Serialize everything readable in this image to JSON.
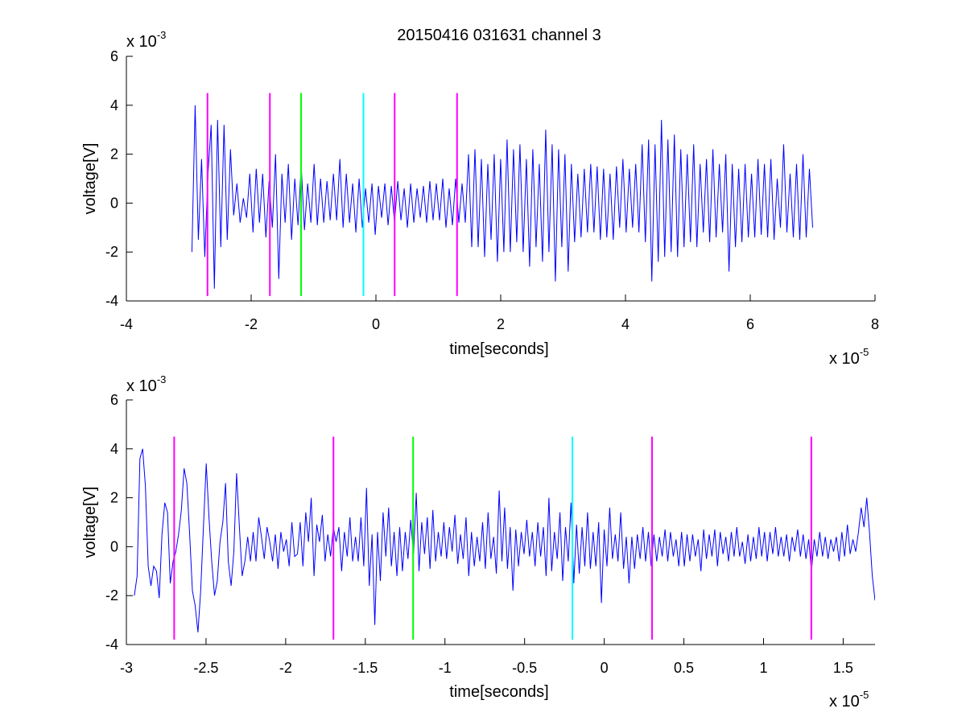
{
  "figure_title": "20150416 031631 channel 3",
  "chart_data": [
    {
      "type": "line",
      "xlabel": "time[seconds]",
      "ylabel": "voltage[V]",
      "x_multiplier": "x 10",
      "x_exponent": "-5",
      "y_multiplier": "x 10",
      "y_exponent": "-3",
      "xlim": [
        -4,
        8
      ],
      "ylim": [
        -4,
        6
      ],
      "x_ticks": [
        -4,
        -2,
        0,
        2,
        4,
        6,
        8
      ],
      "x_tick_labels": [
        "-4",
        "-2",
        "0",
        "2",
        "4",
        "6",
        "8"
      ],
      "y_ticks": [
        -4,
        -2,
        0,
        2,
        4,
        6
      ],
      "y_tick_labels": [
        "-4",
        "-2",
        "0",
        "2",
        "4",
        "6"
      ],
      "grid": false,
      "series": [
        {
          "color": "#0000ff",
          "x_start": -2.95,
          "x_end": 7.0,
          "values": [
            -2.0,
            4.0,
            -1.5,
            1.8,
            -2.2,
            1.2,
            3.2,
            -3.5,
            3.4,
            -1.8,
            3.2,
            -1.5,
            2.2,
            -0.5,
            0.8,
            -0.8,
            0.2,
            -0.6,
            1.2,
            -1.2,
            1.4,
            -0.8,
            1.2,
            -1.4,
            0.9,
            -1.0,
            2.0,
            -3.1,
            1.2,
            -0.8,
            1.6,
            -1.5,
            1.0,
            -0.9,
            1.5,
            -1.1,
            0.8,
            -0.8,
            1.6,
            -0.9,
            1.0,
            -0.8,
            0.9,
            -0.7,
            1.2,
            -0.7,
            1.8,
            -1.0,
            1.2,
            -0.8,
            0.8,
            -1.2,
            1.0,
            -1.0,
            0.6,
            -0.8,
            0.8,
            -1.3,
            0.7,
            -0.6,
            0.8,
            -0.9,
            0.7,
            -0.8,
            0.9,
            -0.7,
            0.6,
            -1.0,
            0.8,
            -0.8,
            0.6,
            -0.6,
            0.7,
            -0.8,
            0.9,
            -0.7,
            0.8,
            -0.7,
            1.0,
            -1.0,
            0.6,
            -0.9,
            1.0,
            -0.8,
            0.8,
            -0.8,
            2.0,
            -1.8,
            2.2,
            -1.8,
            1.8,
            -2.2,
            1.6,
            -1.5,
            2.0,
            -2.4,
            1.8,
            -2.0,
            2.6,
            -2.0,
            2.2,
            -1.6,
            2.4,
            -2.0,
            1.8,
            -2.6,
            2.2,
            -1.8,
            1.6,
            -2.4,
            3.0,
            -2.0,
            2.4,
            -3.2,
            2.2,
            -1.8,
            2.0,
            -2.8,
            1.6,
            -1.6,
            1.2,
            -1.4,
            1.4,
            -1.2,
            1.6,
            -1.2,
            1.5,
            -1.5,
            1.4,
            -1.4,
            1.2,
            -1.5,
            1.5,
            -1.0,
            1.8,
            -1.2,
            1.4,
            -1.0,
            1.6,
            -1.2,
            2.4,
            -1.6,
            2.6,
            -3.2,
            2.4,
            -2.4,
            3.4,
            -2.2,
            2.6,
            -2.0,
            2.8,
            -2.2,
            2.2,
            -1.8,
            2.0,
            -1.6,
            2.4,
            -1.8,
            1.6,
            -1.2,
            1.8,
            -1.6,
            2.2,
            -1.4,
            1.6,
            -1.2,
            2.0,
            -2.8,
            1.6,
            -1.8,
            1.4,
            -1.6,
            1.6,
            -1.4,
            1.2,
            -1.4,
            1.8,
            -1.3,
            1.6,
            -1.4,
            1.8,
            -1.5,
            1.0,
            -1.0,
            2.4,
            -1.2,
            1.2,
            -1.4,
            1.6,
            -1.5,
            2.0,
            -1.4,
            1.4,
            -1.0
          ]
        }
      ],
      "markers": [
        {
          "x": -2.7,
          "color": "#ff00ff"
        },
        {
          "x": -1.7,
          "color": "#ff00ff"
        },
        {
          "x": -1.2,
          "color": "#00ff00"
        },
        {
          "x": -0.2,
          "color": "#00ffff"
        },
        {
          "x": 0.3,
          "color": "#ff00ff"
        },
        {
          "x": 1.3,
          "color": "#ff00ff"
        }
      ],
      "marker_ylim": [
        -3.8,
        4.5
      ]
    },
    {
      "type": "line",
      "xlabel": "time[seconds]",
      "ylabel": "voltage[V]",
      "x_multiplier": "x 10",
      "x_exponent": "-5",
      "y_multiplier": "x 10",
      "y_exponent": "-3",
      "xlim": [
        -3.0,
        1.7
      ],
      "ylim": [
        -4,
        6
      ],
      "x_ticks": [
        -3,
        -2.5,
        -2,
        -1.5,
        -1,
        -0.5,
        0,
        0.5,
        1,
        1.5
      ],
      "x_tick_labels": [
        "-3",
        "-2.5",
        "-2",
        "-1.5",
        "-1",
        "-0.5",
        "0",
        "0.5",
        "1",
        "1.5"
      ],
      "y_ticks": [
        -4,
        -2,
        0,
        2,
        4,
        6
      ],
      "y_tick_labels": [
        "-4",
        "-2",
        "0",
        "2",
        "4",
        "6"
      ],
      "grid": false,
      "series": [
        {
          "color": "#0000ff",
          "x_start": -2.95,
          "x_end": 1.7,
          "values": [
            -2.0,
            -1.2,
            3.6,
            4.0,
            2.5,
            -0.8,
            -1.6,
            -0.8,
            -1.0,
            -2.1,
            0.5,
            1.8,
            1.4,
            -1.5,
            -0.6,
            -0.2,
            0.5,
            1.5,
            3.2,
            2.6,
            0.5,
            -1.8,
            -2.4,
            -3.5,
            -1.8,
            0.8,
            3.4,
            1.2,
            -0.6,
            -2.0,
            -1.4,
            0.2,
            1.0,
            2.6,
            -0.6,
            -1.6,
            -0.2,
            3.0,
            0.8,
            -1.2,
            -0.6,
            0.4,
            -0.6,
            0.6,
            -0.6,
            1.2,
            0.4,
            -0.5,
            0.8,
            0.2,
            -0.6,
            0.5,
            -0.9,
            0.6,
            -0.2,
            0.3,
            -0.8,
            1.0,
            -0.4,
            -0.3,
            1.0,
            -0.8,
            1.4,
            0.2,
            2.0,
            -1.2,
            0.9,
            0.2,
            1.3,
            -0.6,
            0.5,
            -0.4,
            0.8,
            0.2,
            0.8,
            -1.0,
            0.6,
            -0.4,
            1.2,
            -0.6,
            0.4,
            -0.6,
            1.2,
            -0.8,
            2.4,
            -1.6,
            0.5,
            -3.2,
            0.6,
            -1.4,
            1.4,
            -0.4,
            1.6,
            -0.8,
            0.6,
            -1.2,
            0.8,
            -1.0,
            0.6,
            -0.5,
            1.1,
            -0.3,
            2.2,
            -1.0,
            1.0,
            -0.3,
            1.2,
            -0.9,
            1.5,
            -0.6,
            0.6,
            -0.4,
            1.0,
            -0.5,
            0.8,
            -0.2,
            1.3,
            -0.7,
            0.5,
            -0.5,
            1.2,
            -1.2,
            0.6,
            -0.8,
            0.4,
            -0.6,
            1.0,
            -0.9,
            1.4,
            -0.5,
            0.4,
            -1.1,
            2.3,
            -0.6,
            1.6,
            -0.9,
            0.8,
            -1.8,
            0.7,
            -0.8,
            0.6,
            -0.3,
            1.1,
            -0.4,
            0.6,
            -0.8,
            1.0,
            -0.4,
            0.8,
            -1.2,
            2.0,
            -1.0,
            0.6,
            -0.5,
            1.4,
            -1.4,
            0.8,
            -0.6,
            1.8,
            -1.5,
            0.9,
            -1.1,
            0.8,
            -0.8,
            1.4,
            -0.9,
            0.6,
            -0.8,
            1.0,
            -2.3,
            0.7,
            -0.8,
            1.6,
            -0.5,
            0.5,
            -0.6,
            1.4,
            -0.9,
            0.4,
            -1.5,
            0.4,
            -0.9,
            0.5,
            -0.5,
            0.8,
            -0.6,
            0.6,
            -0.8,
            0.5,
            -0.6,
            0.4,
            -0.4,
            0.7,
            -0.6,
            0.6,
            -0.4,
            0.3,
            -0.8,
            0.6,
            -0.8,
            0.5,
            -0.6,
            0.5,
            -0.4,
            0.3,
            -1.0,
            0.7,
            -0.5,
            0.5,
            -0.4,
            0.7,
            -0.8,
            0.6,
            -0.3,
            0.4,
            -0.6,
            0.6,
            -0.4,
            0.8,
            -0.4,
            0.2,
            -0.7,
            0.5,
            -0.6,
            0.4,
            -0.5,
            0.8,
            -0.4,
            0.6,
            -0.6,
            0.6,
            -0.3,
            0.8,
            -0.4,
            0.4,
            -0.4,
            0.5,
            -0.6,
            0.4,
            -0.2,
            0.7,
            -0.4,
            0.5,
            -0.5,
            0.3,
            -1.0,
            0.3,
            -0.4,
            0.6,
            -0.4,
            0.4,
            -0.5,
            0.3,
            -0.2,
            0.4,
            -0.6,
            0.6,
            -0.4,
            0.9,
            -0.3,
            0.3,
            -0.2,
            0.6,
            1.6,
            0.8,
            2.0,
            0.6,
            -1.2,
            -2.2
          ]
        }
      ],
      "markers": [
        {
          "x": -2.7,
          "color": "#ff00ff"
        },
        {
          "x": -1.7,
          "color": "#ff00ff"
        },
        {
          "x": -1.2,
          "color": "#00ff00"
        },
        {
          "x": -0.2,
          "color": "#00ffff"
        },
        {
          "x": 0.3,
          "color": "#ff00ff"
        },
        {
          "x": 1.3,
          "color": "#ff00ff"
        }
      ],
      "marker_ylim": [
        -3.8,
        4.5
      ]
    }
  ]
}
